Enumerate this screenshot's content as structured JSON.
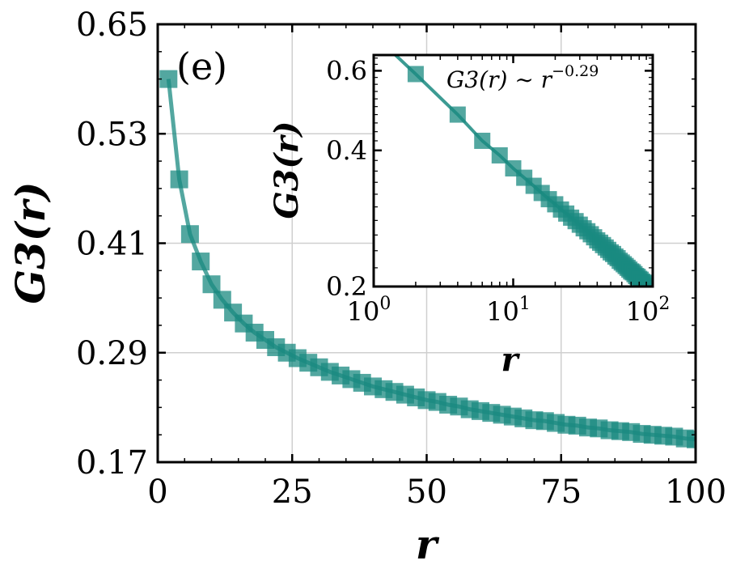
{
  "chart_data": [
    {
      "type": "scatter",
      "panel_label": "(e)",
      "xlabel": "r",
      "ylabel": "G3(r)",
      "xlim": [
        0,
        100
      ],
      "ylim": [
        0.17,
        0.65
      ],
      "x_ticks": [
        "0",
        "25",
        "50",
        "75",
        "100"
      ],
      "y_ticks": [
        "0.17",
        "0.29",
        "0.41",
        "0.53",
        "0.65"
      ],
      "grid": true,
      "color": "#1a8a80",
      "series": [
        {
          "x": [
            2,
            4,
            6,
            8,
            10,
            12,
            14,
            16,
            18,
            20,
            22,
            24,
            26,
            28,
            30,
            32,
            34,
            36,
            38,
            40,
            42,
            44,
            46,
            48,
            50,
            52,
            54,
            56,
            58,
            60,
            62,
            64,
            66,
            68,
            70,
            72,
            74,
            76,
            78,
            80,
            82,
            84,
            86,
            88,
            90,
            92,
            94,
            96,
            98,
            100
          ],
          "y": [
            0.59,
            0.48,
            0.42,
            0.39,
            0.365,
            0.348,
            0.334,
            0.322,
            0.312,
            0.304,
            0.296,
            0.29,
            0.284,
            0.279,
            0.274,
            0.269,
            0.265,
            0.261,
            0.257,
            0.253,
            0.25,
            0.247,
            0.244,
            0.241,
            0.238,
            0.236,
            0.233,
            0.231,
            0.228,
            0.226,
            0.224,
            0.222,
            0.22,
            0.218,
            0.216,
            0.215,
            0.213,
            0.211,
            0.21,
            0.208,
            0.207,
            0.205,
            0.204,
            0.203,
            0.201,
            0.2,
            0.199,
            0.198,
            0.196,
            0.195
          ]
        }
      ]
    },
    {
      "type": "scatter",
      "inset": true,
      "xlabel": "r",
      "ylabel": "G3(r)",
      "xscale": "log",
      "yscale": "log",
      "xlim": [
        1,
        100
      ],
      "ylim": [
        0.2,
        0.65
      ],
      "x_ticks": [
        "10",
        "10",
        "10"
      ],
      "x_tick_exponents": [
        "0",
        "1",
        "2"
      ],
      "y_ticks": [
        "0.2",
        "0.4",
        "0.6"
      ],
      "annotation": "G3(r) ∼ r",
      "annotation_exponent": "−0.29",
      "fit": {
        "exponent": -0.29
      },
      "color": "#1a8a80",
      "series": [
        {
          "x": [
            2,
            4,
            6,
            8,
            10,
            12,
            14,
            16,
            18,
            20,
            22,
            24,
            26,
            28,
            30,
            32,
            34,
            36,
            38,
            40,
            42,
            44,
            46,
            48,
            50,
            52,
            54,
            56,
            58,
            60,
            62,
            64,
            66,
            68,
            70,
            72,
            74,
            76,
            78,
            80,
            82,
            84,
            86,
            88,
            90,
            92,
            94,
            96,
            98,
            100
          ],
          "y": [
            0.59,
            0.48,
            0.42,
            0.39,
            0.365,
            0.348,
            0.334,
            0.322,
            0.312,
            0.304,
            0.296,
            0.29,
            0.284,
            0.279,
            0.274,
            0.269,
            0.265,
            0.261,
            0.257,
            0.253,
            0.25,
            0.247,
            0.244,
            0.241,
            0.238,
            0.236,
            0.233,
            0.231,
            0.228,
            0.226,
            0.224,
            0.222,
            0.22,
            0.218,
            0.216,
            0.215,
            0.213,
            0.211,
            0.21,
            0.208,
            0.207,
            0.205,
            0.204,
            0.203,
            0.201,
            0.2,
            0.199,
            0.198,
            0.196,
            0.195
          ]
        }
      ]
    }
  ]
}
